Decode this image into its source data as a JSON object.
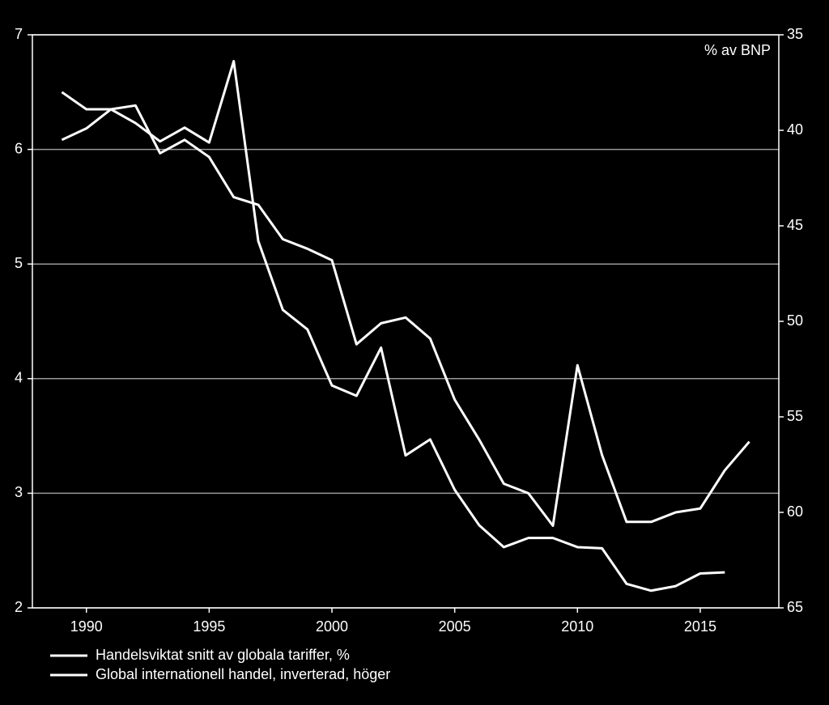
{
  "chart_data": {
    "type": "line",
    "x": [
      1989,
      1990,
      1991,
      1992,
      1993,
      1994,
      1995,
      1996,
      1997,
      1998,
      1999,
      2000,
      2001,
      2002,
      2003,
      2004,
      2005,
      2006,
      2007,
      2008,
      2009,
      2010,
      2011,
      2012,
      2013,
      2014,
      2015,
      2016,
      2017
    ],
    "y2_label": "% av BNP",
    "series": [
      {
        "name": "Handelsviktat snitt av globala tariffer, %",
        "color": "#ffffff",
        "values": [
          6.5,
          6.35,
          6.35,
          6.23,
          6.07,
          6.19,
          6.06,
          6.77,
          5.2,
          4.6,
          4.43,
          3.94,
          3.85,
          4.27,
          3.33,
          3.47,
          3.03,
          2.72,
          2.53,
          2.61,
          2.61,
          2.53,
          2.52,
          2.21,
          2.15,
          2.19,
          2.3,
          2.31,
          null
        ]
      },
      {
        "name": "Global internationell handel, inverterad, höger",
        "color": "#ffffff",
        "axis": "y2",
        "values": [
          40.5,
          39.9,
          38.9,
          38.7,
          41.2,
          40.5,
          41.4,
          43.5,
          43.9,
          45.7,
          46.2,
          46.8,
          51.2,
          50.1,
          49.8,
          50.9,
          54.1,
          56.2,
          58.5,
          59.0,
          60.7,
          52.3,
          57.0,
          60.5,
          60.5,
          60.0,
          59.8,
          57.8,
          56.3
        ]
      }
    ],
    "xlim": [
      1987.8,
      2018.2
    ],
    "xticks": [
      1990,
      1995,
      2000,
      2005,
      2010,
      2015
    ],
    "ylim": [
      2,
      7
    ],
    "yticks": [
      2,
      3,
      4,
      5,
      6,
      7
    ],
    "y2lim": [
      35,
      65
    ],
    "y2ticks": [
      35,
      40,
      45,
      50,
      55,
      60,
      65
    ],
    "y2_inverted": true,
    "grid": true,
    "legend": "bottom-left"
  }
}
